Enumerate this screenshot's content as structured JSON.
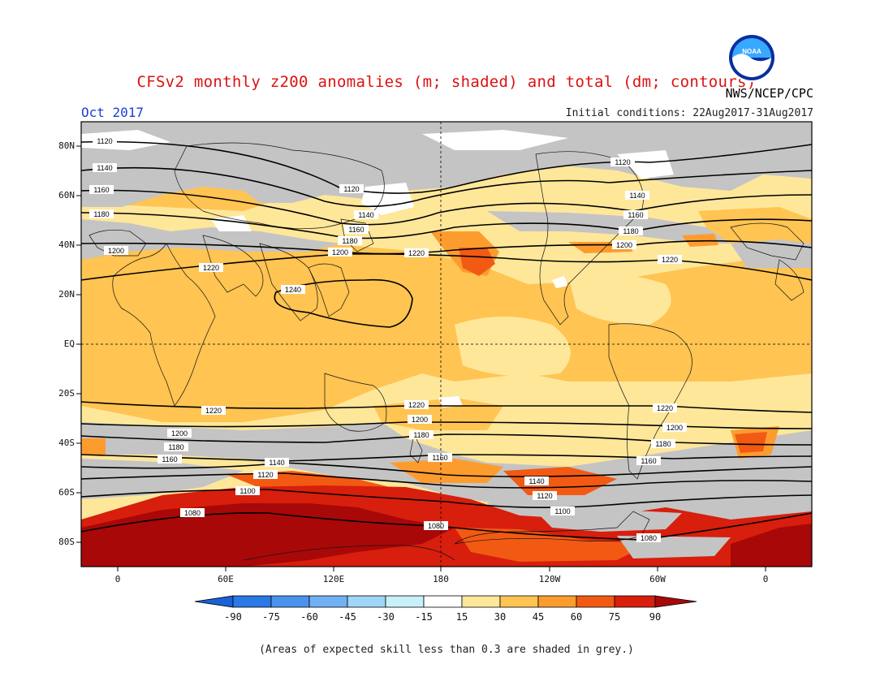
{
  "title": "CFSv2 monthly z200 anomalies (m; shaded) and total (dm; contours)",
  "month": "Oct 2017",
  "initial_conditions": "Initial conditions: 22Aug2017-31Aug2017",
  "agency": "NWS/NCEP/CPC",
  "logo": {
    "text": "NOAA",
    "colors": {
      "ring": "#0a2f9e",
      "sky": "#39a8ff",
      "wave": "#ffffff"
    }
  },
  "footnote": "(Areas of expected skill less than 0.3 are shaded in grey.)",
  "lat_labels": [
    "80N",
    "60N",
    "40N",
    "20N",
    "EQ",
    "20S",
    "40S",
    "60S",
    "80S"
  ],
  "lon_labels": [
    "0",
    "60E",
    "120E",
    "180",
    "120W",
    "60W",
    "0"
  ],
  "colorbar": {
    "labels": [
      "-90",
      "-75",
      "-60",
      "-45",
      "-30",
      "-15",
      "15",
      "30",
      "45",
      "60",
      "75",
      "90"
    ],
    "colors": [
      "#1861d8",
      "#2a79e6",
      "#4a93ec",
      "#6fb1f2",
      "#9fd5f7",
      "#c8f0f8",
      "#ffffff",
      "#ffe79a",
      "#ffc452",
      "#fd9c2e",
      "#f25a14",
      "#d81e0c",
      "#a80808"
    ]
  },
  "contour_labels": {
    "1240": "1240",
    "1220": "1220",
    "1200": "1200",
    "1180": "1180",
    "1160": "1160",
    "1140": "1140",
    "1120": "1120",
    "1100": "1100",
    "1080": "1080"
  },
  "colors": {
    "grey_skill": "#c4c4c4",
    "contour": "#000000",
    "coast": "#111111"
  }
}
